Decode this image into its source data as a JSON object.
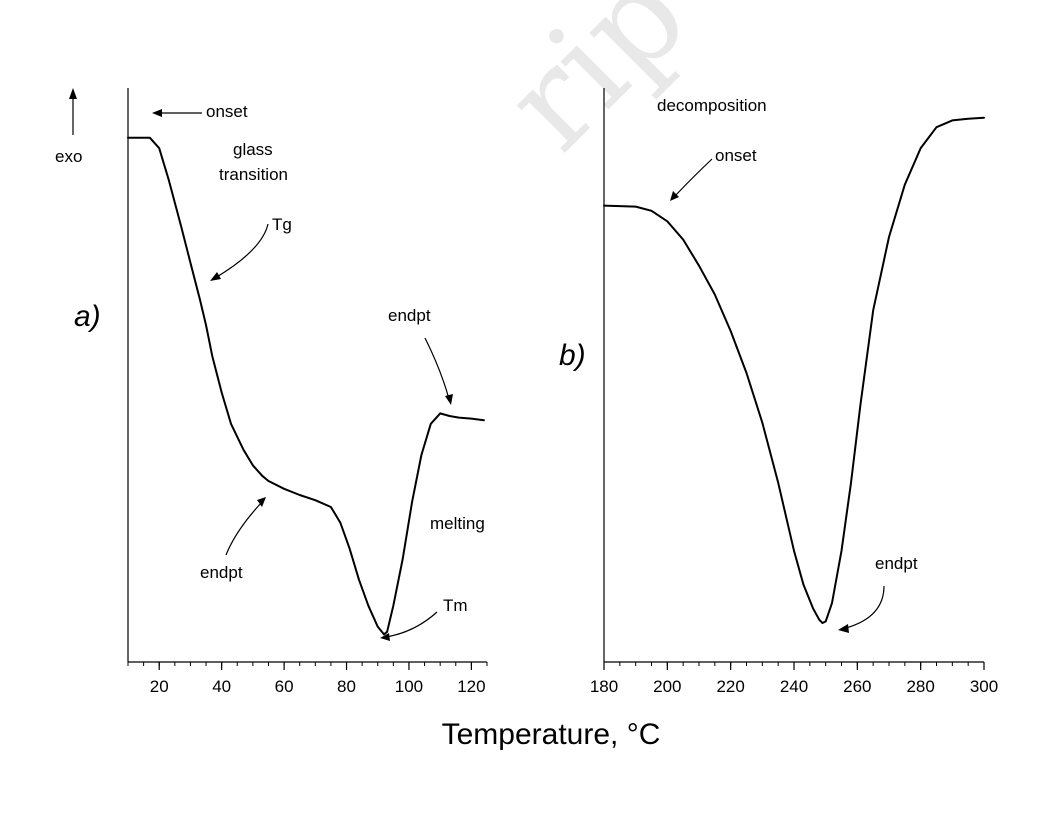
{
  "xlabel": "Temperature, °C",
  "exo_label": "exo",
  "chart_data": [
    {
      "type": "line",
      "panel_label": "a)",
      "xlim": [
        10,
        125
      ],
      "ylim": [
        0,
        100
      ],
      "x_ticks": [
        20,
        40,
        60,
        80,
        100,
        120
      ],
      "series": [
        {
          "x": [
            10,
            17,
            20,
            23,
            27,
            30,
            33,
            35,
            37,
            40,
            43,
            47,
            50,
            53,
            55,
            60,
            65,
            70,
            75,
            78,
            81,
            84,
            87,
            90,
            92,
            93,
            95,
            98,
            101,
            104,
            107,
            110,
            113,
            116,
            120,
            124
          ],
          "y": [
            96,
            96,
            94,
            88,
            79,
            72,
            65,
            60,
            54,
            47,
            41,
            36,
            33,
            31,
            30,
            28.5,
            27.3,
            26.3,
            25,
            22,
            17,
            11,
            6,
            2,
            0.5,
            1,
            6,
            15,
            26,
            35,
            41,
            43,
            42.5,
            42.2,
            42,
            41.7
          ]
        }
      ],
      "annotations": [
        {
          "text": "onset"
        },
        {
          "text": "glass"
        },
        {
          "text": "transition"
        },
        {
          "text": "Tg"
        },
        {
          "text": "endpt"
        },
        {
          "text": "endpt"
        },
        {
          "text": "melting"
        },
        {
          "text": "Tm"
        }
      ]
    },
    {
      "type": "line",
      "panel_label": "b)",
      "xlim": [
        180,
        300
      ],
      "ylim": [
        0,
        100
      ],
      "x_ticks": [
        180,
        200,
        220,
        240,
        260,
        280,
        300
      ],
      "series": [
        {
          "x": [
            180,
            190,
            195,
            200,
            205,
            210,
            215,
            220,
            225,
            230,
            235,
            240,
            243,
            246,
            248,
            249,
            250,
            252,
            255,
            258,
            261,
            265,
            270,
            275,
            280,
            285,
            290,
            295,
            300
          ],
          "y": [
            80,
            79.8,
            79,
            77,
            73.5,
            68.5,
            63,
            56,
            48,
            38.5,
            27,
            14,
            7.5,
            3,
            0.8,
            0.2,
            0.5,
            4,
            14,
            27,
            42,
            60,
            74,
            84,
            91,
            95,
            96.3,
            96.6,
            96.8
          ]
        }
      ],
      "annotations": [
        {
          "text": "decomposition"
        },
        {
          "text": "onset"
        },
        {
          "text": "endpt"
        }
      ]
    }
  ]
}
